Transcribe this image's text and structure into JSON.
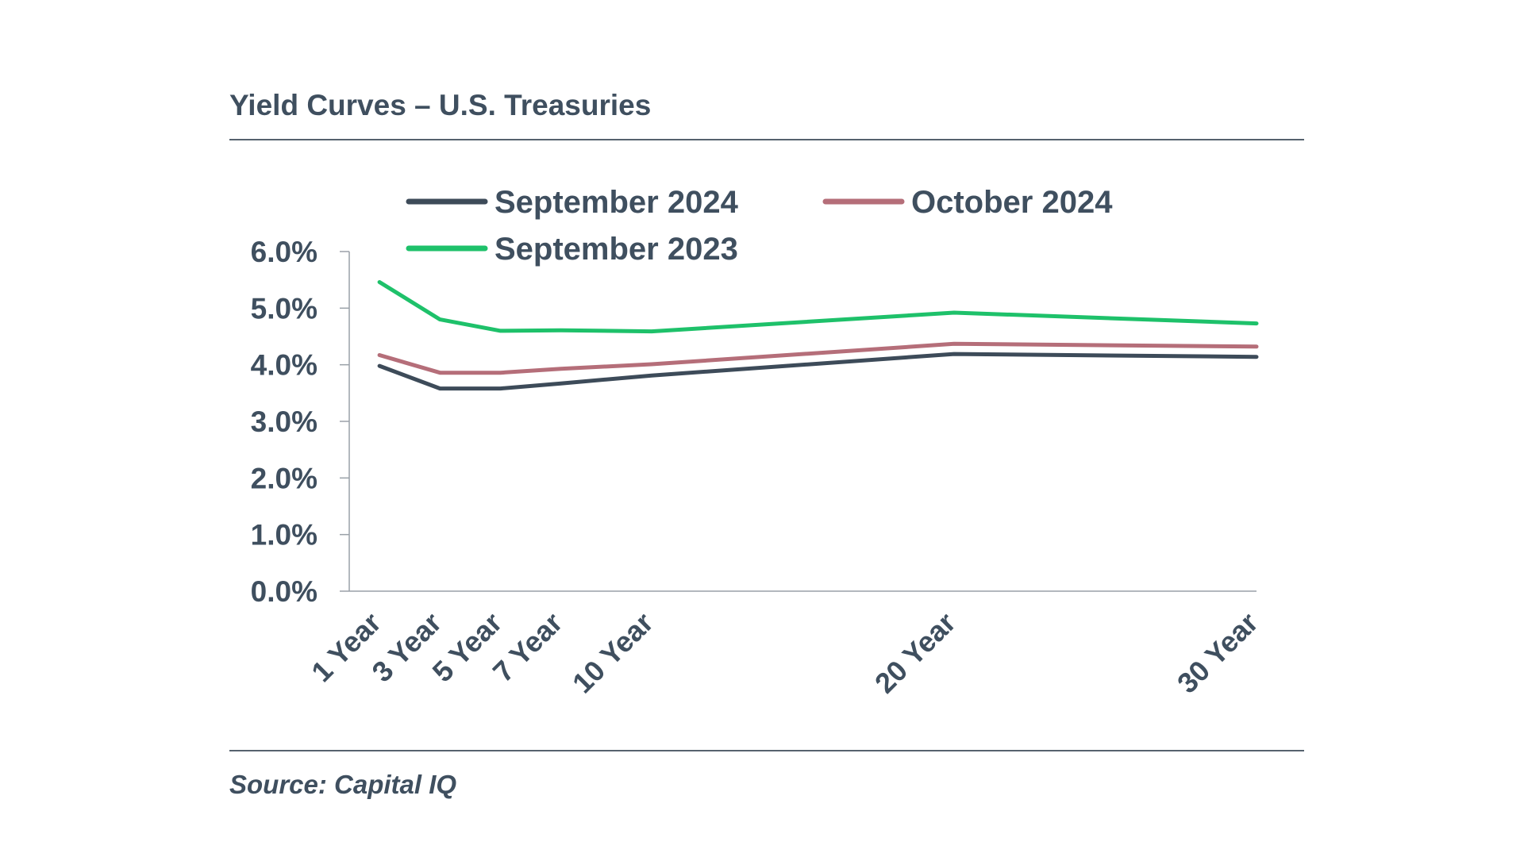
{
  "header": {
    "title": "Yield Curves – U.S. Treasuries"
  },
  "footer": {
    "source": "Source: Capital IQ"
  },
  "chart_data": {
    "type": "line",
    "title": "Yield Curves – U.S. Treasuries",
    "xlabel": "",
    "ylabel": "",
    "x_type": "maturity-years",
    "x": [
      1,
      3,
      5,
      7,
      10,
      20,
      30
    ],
    "categories": [
      "1 Year",
      "3 Year",
      "5 Year",
      "7 Year",
      "10 Year",
      "20 Year",
      "30 Year"
    ],
    "xlim": [
      0,
      30
    ],
    "ylim": [
      0,
      6
    ],
    "yticks": [
      0,
      1,
      2,
      3,
      4,
      5,
      6
    ],
    "ytick_labels": [
      "0.0%",
      "1.0%",
      "2.0%",
      "3.0%",
      "4.0%",
      "5.0%",
      "6.0%"
    ],
    "grid": false,
    "legend_position": "top",
    "series": [
      {
        "name": "September 2024",
        "color": "#3d4b59",
        "values": [
          3.98,
          3.58,
          3.58,
          3.67,
          3.81,
          4.19,
          4.14
        ]
      },
      {
        "name": "October 2024",
        "color": "#b56e79",
        "values": [
          4.17,
          3.86,
          3.86,
          3.93,
          4.01,
          4.37,
          4.32
        ]
      },
      {
        "name": "September 2023",
        "color": "#1ec16a",
        "values": [
          5.46,
          4.8,
          4.6,
          4.61,
          4.59,
          4.92,
          4.73
        ]
      }
    ]
  }
}
